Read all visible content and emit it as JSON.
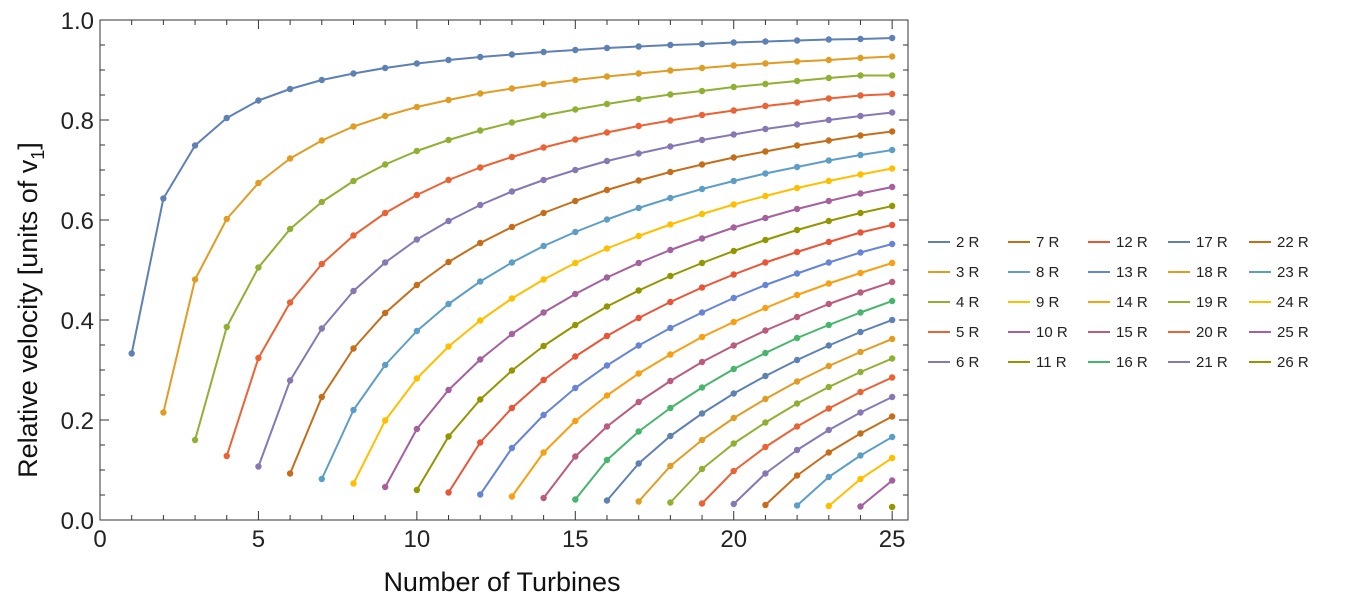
{
  "chart_data": {
    "type": "line",
    "title": "",
    "xlabel": "Number of Turbines",
    "ylabel": "Relative velocity [units of v",
    "ylabel_subscript": "1",
    "ylabel_suffix": "]",
    "xlim": [
      0,
      25.5
    ],
    "ylim": [
      0,
      1.0
    ],
    "x_ticks": [
      0,
      5,
      10,
      15,
      20,
      25
    ],
    "y_ticks": [
      0.0,
      0.2,
      0.4,
      0.6,
      0.8,
      1.0
    ],
    "x_tick_labels": [
      "0",
      "5",
      "10",
      "15",
      "20",
      "25"
    ],
    "y_tick_labels": [
      "0.0",
      "0.2",
      "0.4",
      "0.6",
      "0.8",
      "1.0"
    ],
    "grid": false,
    "legend_position": "right",
    "x_max": 25,
    "series": [
      {
        "name": "2 R",
        "color": "#5e81b5",
        "start": 1,
        "values": [
          0.333,
          0.643,
          0.749,
          0.804,
          0.839,
          0.862,
          0.88,
          0.893,
          0.904,
          0.913,
          0.92,
          0.926,
          0.931,
          0.936,
          0.94,
          0.944,
          0.947,
          0.95,
          0.952,
          0.955,
          0.957,
          0.959,
          0.961,
          0.962,
          0.964
        ]
      },
      {
        "name": "3 R",
        "color": "#e19c24",
        "start": 2,
        "values": [
          0.215,
          0.481,
          0.602,
          0.674,
          0.723,
          0.759,
          0.787,
          0.808,
          0.826,
          0.84,
          0.853,
          0.863,
          0.872,
          0.88,
          0.887,
          0.893,
          0.899,
          0.904,
          0.909,
          0.913,
          0.917,
          0.92,
          0.924,
          0.927
        ]
      },
      {
        "name": "4 R",
        "color": "#8fb032",
        "start": 3,
        "values": [
          0.16,
          0.386,
          0.505,
          0.582,
          0.636,
          0.678,
          0.711,
          0.738,
          0.76,
          0.779,
          0.795,
          0.809,
          0.821,
          0.832,
          0.842,
          0.851,
          0.858,
          0.866,
          0.872,
          0.878,
          0.884,
          0.889,
          0.889
        ]
      },
      {
        "name": "5 R",
        "color": "#eb6235",
        "start": 4,
        "values": [
          0.128,
          0.324,
          0.435,
          0.512,
          0.569,
          0.614,
          0.65,
          0.68,
          0.705,
          0.726,
          0.745,
          0.761,
          0.775,
          0.788,
          0.799,
          0.81,
          0.819,
          0.828,
          0.835,
          0.843,
          0.849,
          0.852
        ]
      },
      {
        "name": "6 R",
        "color": "#8778b3",
        "start": 5,
        "values": [
          0.107,
          0.279,
          0.383,
          0.458,
          0.515,
          0.561,
          0.598,
          0.63,
          0.657,
          0.68,
          0.7,
          0.718,
          0.733,
          0.747,
          0.76,
          0.771,
          0.782,
          0.791,
          0.8,
          0.808,
          0.815
        ]
      },
      {
        "name": "7 R",
        "color": "#c56e1a",
        "start": 6,
        "values": [
          0.093,
          0.246,
          0.343,
          0.414,
          0.47,
          0.516,
          0.554,
          0.586,
          0.614,
          0.638,
          0.66,
          0.679,
          0.696,
          0.711,
          0.725,
          0.737,
          0.749,
          0.759,
          0.769,
          0.777
        ]
      },
      {
        "name": "8 R",
        "color": "#5d9ec7",
        "start": 7,
        "values": [
          0.082,
          0.22,
          0.31,
          0.378,
          0.432,
          0.477,
          0.515,
          0.548,
          0.576,
          0.601,
          0.624,
          0.644,
          0.662,
          0.678,
          0.693,
          0.706,
          0.719,
          0.73,
          0.74
        ]
      },
      {
        "name": "9 R",
        "color": "#ffbf00",
        "start": 8,
        "values": [
          0.073,
          0.199,
          0.283,
          0.347,
          0.399,
          0.443,
          0.481,
          0.514,
          0.543,
          0.568,
          0.591,
          0.612,
          0.631,
          0.648,
          0.664,
          0.678,
          0.691,
          0.703
        ]
      },
      {
        "name": "10 R",
        "color": "#a5609d",
        "start": 9,
        "values": [
          0.066,
          0.182,
          0.26,
          0.321,
          0.372,
          0.415,
          0.452,
          0.485,
          0.514,
          0.54,
          0.563,
          0.585,
          0.604,
          0.622,
          0.638,
          0.653,
          0.666
        ]
      },
      {
        "name": "11 R",
        "color": "#929600",
        "start": 10,
        "values": [
          0.06,
          0.167,
          0.241,
          0.299,
          0.348,
          0.39,
          0.427,
          0.459,
          0.488,
          0.514,
          0.538,
          0.56,
          0.58,
          0.598,
          0.614,
          0.628
        ]
      },
      {
        "name": "12 R",
        "color": "#e95536",
        "start": 11,
        "values": [
          0.055,
          0.155,
          0.224,
          0.28,
          0.327,
          0.368,
          0.404,
          0.436,
          0.465,
          0.491,
          0.515,
          0.536,
          0.556,
          0.575,
          0.59
        ]
      },
      {
        "name": "13 R",
        "color": "#6685d9",
        "start": 12,
        "values": [
          0.051,
          0.144,
          0.21,
          0.264,
          0.309,
          0.349,
          0.384,
          0.415,
          0.444,
          0.47,
          0.493,
          0.515,
          0.535,
          0.552
        ]
      },
      {
        "name": "14 R",
        "color": "#f89f13",
        "start": 13,
        "values": [
          0.047,
          0.135,
          0.198,
          0.249,
          0.293,
          0.331,
          0.366,
          0.396,
          0.424,
          0.45,
          0.473,
          0.494,
          0.514
        ]
      },
      {
        "name": "15 R",
        "color": "#bc5b80",
        "start": 14,
        "values": [
          0.044,
          0.127,
          0.187,
          0.236,
          0.278,
          0.316,
          0.349,
          0.379,
          0.406,
          0.432,
          0.455,
          0.476
        ]
      },
      {
        "name": "16 R",
        "color": "#47b66d",
        "start": 15,
        "values": [
          0.041,
          0.12,
          0.177,
          0.224,
          0.265,
          0.302,
          0.334,
          0.364,
          0.39,
          0.415,
          0.438
        ]
      },
      {
        "name": "17 R",
        "color": "#5e81b5",
        "start": 16,
        "values": [
          0.039,
          0.113,
          0.168,
          0.213,
          0.253,
          0.288,
          0.32,
          0.349,
          0.376,
          0.4
        ]
      },
      {
        "name": "18 R",
        "color": "#e19c24",
        "start": 17,
        "values": [
          0.037,
          0.108,
          0.16,
          0.204,
          0.242,
          0.277,
          0.308,
          0.336,
          0.362
        ]
      },
      {
        "name": "19 R",
        "color": "#8fb032",
        "start": 18,
        "values": [
          0.035,
          0.102,
          0.153,
          0.195,
          0.233,
          0.266,
          0.296,
          0.323
        ]
      },
      {
        "name": "20 R",
        "color": "#eb6235",
        "start": 19,
        "values": [
          0.033,
          0.098,
          0.146,
          0.187,
          0.223,
          0.256,
          0.285
        ]
      },
      {
        "name": "21 R",
        "color": "#8778b3",
        "start": 20,
        "values": [
          0.032,
          0.093,
          0.14,
          0.18,
          0.215,
          0.246
        ]
      },
      {
        "name": "22 R",
        "color": "#c56e1a",
        "start": 21,
        "values": [
          0.03,
          0.089,
          0.135,
          0.173,
          0.207
        ]
      },
      {
        "name": "23 R",
        "color": "#5d9ec7",
        "start": 22,
        "values": [
          0.029,
          0.086,
          0.129,
          0.166
        ]
      },
      {
        "name": "24 R",
        "color": "#ffbf00",
        "start": 23,
        "values": [
          0.028,
          0.082,
          0.124
        ]
      },
      {
        "name": "25 R",
        "color": "#a5609d",
        "start": 24,
        "values": [
          0.027,
          0.079
        ]
      },
      {
        "name": "26 R",
        "color": "#929600",
        "start": 25,
        "values": [
          0.026
        ]
      }
    ]
  }
}
